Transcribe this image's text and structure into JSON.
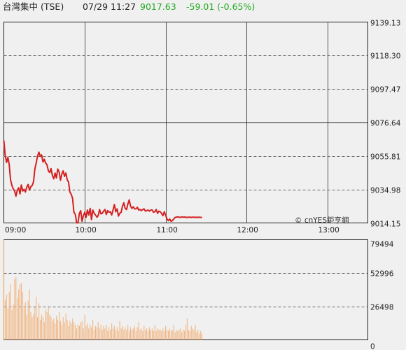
{
  "header": {
    "name": "台灣集中 (TSE)",
    "datetime": "07/29 11:27",
    "price": "9017.63",
    "change": "-59.01 (-0.65%)",
    "price_color": "#22aa22",
    "change_color": "#22aa22"
  },
  "watermark": "© cnYES鉅亨網",
  "colors": {
    "line": "#d42020",
    "volume": "#f2b580",
    "volume_first": "#e8a050",
    "grid": "#666666"
  },
  "chart_data": [
    {
      "type": "line",
      "xlim": [
        0,
        270
      ],
      "ylim": [
        9014.15,
        9139.13
      ],
      "y_ticks": [
        "9139.13",
        "9118.30",
        "9097.47",
        "9076.64",
        "9055.81",
        "9034.98",
        "9014.15"
      ],
      "x_ticks": [
        {
          "label": "09:00",
          "minute": 0
        },
        {
          "label": "10:00",
          "minute": 60
        },
        {
          "label": "11:00",
          "minute": 120
        },
        {
          "label": "12:00",
          "minute": 180
        },
        {
          "label": "13:00",
          "minute": 240
        }
      ],
      "x": [
        0,
        1,
        2,
        3,
        4,
        5,
        6,
        7,
        8,
        9,
        10,
        11,
        12,
        13,
        14,
        15,
        16,
        17,
        18,
        19,
        20,
        21,
        22,
        23,
        24,
        25,
        26,
        27,
        28,
        29,
        30,
        31,
        32,
        33,
        34,
        35,
        36,
        37,
        38,
        39,
        40,
        41,
        42,
        43,
        44,
        45,
        46,
        47,
        48,
        49,
        50,
        51,
        52,
        53,
        54,
        55,
        56,
        57,
        58,
        59,
        60,
        61,
        62,
        63,
        64,
        65,
        66,
        67,
        68,
        69,
        70,
        71,
        72,
        73,
        74,
        75,
        76,
        77,
        78,
        79,
        80,
        81,
        82,
        83,
        84,
        85,
        86,
        87,
        88,
        89,
        90,
        91,
        92,
        93,
        94,
        95,
        96,
        97,
        98,
        99,
        100,
        101,
        102,
        103,
        104,
        105,
        106,
        107,
        108,
        109,
        110,
        111,
        112,
        113,
        114,
        115,
        116,
        117,
        118,
        119,
        120,
        121,
        122,
        123,
        124,
        125,
        126,
        127,
        128,
        129,
        130,
        131,
        132,
        133,
        134,
        135,
        136,
        137,
        138,
        139,
        140,
        141,
        142,
        143,
        144,
        145,
        146,
        147
      ],
      "values": [
        9065.5,
        9056.2,
        9051.8,
        9055.1,
        9050.4,
        9040.9,
        9037.4,
        9035.3,
        9033.9,
        9030.8,
        9034.6,
        9036.0,
        9032.2,
        9037.8,
        9034.0,
        9035.1,
        9033.4,
        9036.4,
        9038.1,
        9034.6,
        9036.7,
        9037.4,
        9039.8,
        9047.7,
        9051.4,
        9055.8,
        9058.2,
        9055.5,
        9056.5,
        9052.1,
        9053.8,
        9051.4,
        9050.4,
        9046.6,
        9045.5,
        9048.0,
        9043.8,
        9041.6,
        9045.2,
        9042.1,
        9047.7,
        9045.9,
        9040.7,
        9044.5,
        9046.6,
        9043.1,
        9045.2,
        9041.0,
        9039.6,
        9033.3,
        9031.9,
        9029.4,
        9020.8,
        9019.4,
        9014.2,
        9014.2,
        9020.1,
        9021.8,
        9015.2,
        9018.7,
        9020.8,
        9017.7,
        9022.2,
        9019.1,
        9023.2,
        9016.2,
        9022.2,
        9020.1,
        9019.1,
        9017.7,
        9018.7,
        9022.5,
        9019.8,
        9020.1,
        9021.5,
        9022.5,
        9019.4,
        9021.8,
        9020.8,
        9021.1,
        9019.1,
        9022.2,
        9025.6,
        9021.1,
        9022.9,
        9018.4,
        9020.1,
        9020.8,
        9024.6,
        9026.7,
        9023.2,
        9022.5,
        9026.0,
        9028.5,
        9024.6,
        9023.2,
        9024.2,
        9022.9,
        9022.9,
        9023.9,
        9022.2,
        9022.5,
        9021.8,
        9022.5,
        9022.9,
        9021.5,
        9021.8,
        9022.2,
        9021.5,
        9022.2,
        9022.2,
        9020.8,
        9021.1,
        9022.5,
        9020.1,
        9021.5,
        9021.1,
        9020.1,
        9018.7,
        9021.1,
        9019.1,
        9016.6,
        9015.6,
        9016.6,
        9015.2,
        9015.6,
        9016.6,
        9017.6,
        9017.7,
        9018.0,
        9017.7,
        9017.6,
        9017.9,
        9017.7,
        9017.8,
        9017.7,
        9017.6,
        9017.7,
        9017.7,
        9017.6,
        9017.7,
        9017.7,
        9017.6,
        9017.7,
        9017.6,
        9017.7,
        9017.6,
        9017.63
      ]
    },
    {
      "type": "bar",
      "ylim": [
        0,
        79494
      ],
      "y_ticks": [
        "79494",
        "52996",
        "26498",
        "0"
      ],
      "values": [
        79494,
        32000,
        36000,
        25000,
        38000,
        44000,
        24000,
        28000,
        48000,
        50000,
        33000,
        40000,
        44000,
        45000,
        38000,
        25000,
        30000,
        20000,
        31000,
        40000,
        22000,
        18000,
        20000,
        26000,
        34000,
        18000,
        29000,
        16000,
        20000,
        18000,
        14000,
        24000,
        22000,
        26000,
        20000,
        18000,
        15000,
        17000,
        13000,
        19000,
        16000,
        22000,
        15000,
        12000,
        18000,
        14000,
        21000,
        16000,
        11000,
        15000,
        13000,
        17000,
        14000,
        12000,
        9000,
        12000,
        11000,
        14000,
        15000,
        9000,
        20000,
        11000,
        13000,
        9000,
        12000,
        10000,
        16000,
        8000,
        11000,
        10000,
        14000,
        9000,
        12000,
        8000,
        11000,
        9000,
        12000,
        7000,
        10000,
        8000,
        13000,
        9000,
        11000,
        8000,
        10000,
        7000,
        15000,
        9000,
        11000,
        8000,
        10000,
        8000,
        12000,
        7000,
        10000,
        8000,
        9000,
        11000,
        7000,
        10000,
        14000,
        8000,
        9000,
        7000,
        11000,
        8000,
        9000,
        7000,
        10000,
        8000,
        9000,
        7000,
        12000,
        7000,
        9000,
        8000,
        8000,
        7000,
        9000,
        7000,
        11000,
        8000,
        7000,
        9000,
        7000,
        8000,
        12000,
        6000,
        8000,
        7000,
        8000,
        9000,
        6000,
        8000,
        7000,
        12000,
        17000,
        8000,
        7000,
        11000,
        9000,
        8000,
        12000,
        6000,
        8000,
        5000,
        7000,
        5000
      ]
    }
  ]
}
